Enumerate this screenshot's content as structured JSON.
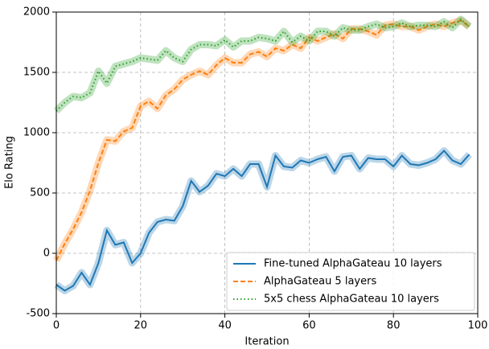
{
  "chart_data": {
    "type": "line",
    "xlabel": "Iteration",
    "ylabel": "Elo Rating",
    "x": [
      0,
      2,
      4,
      6,
      8,
      10,
      12,
      14,
      16,
      18,
      20,
      22,
      24,
      26,
      28,
      30,
      32,
      34,
      36,
      38,
      40,
      42,
      44,
      46,
      48,
      50,
      52,
      54,
      56,
      58,
      60,
      62,
      64,
      66,
      68,
      70,
      72,
      74,
      76,
      78,
      80,
      82,
      84,
      86,
      88,
      90,
      92,
      94,
      96,
      98
    ],
    "series": [
      {
        "name": "Fine-tuned AlphaGateau 10 layers",
        "color": "#1f77b4",
        "linestyle": "solid",
        "values": [
          -260,
          -310,
          -270,
          -160,
          -260,
          -80,
          190,
          70,
          90,
          -80,
          0,
          170,
          260,
          280,
          270,
          390,
          600,
          510,
          560,
          660,
          640,
          700,
          640,
          740,
          740,
          550,
          810,
          720,
          710,
          770,
          750,
          780,
          800,
          680,
          800,
          810,
          700,
          790,
          780,
          780,
          720,
          810,
          740,
          730,
          750,
          780,
          850,
          770,
          740,
          820
        ]
      },
      {
        "name": "AlphaGateau 5 layers",
        "color": "#ff7f0e",
        "linestyle": "dashed",
        "values": [
          -60,
          80,
          200,
          340,
          520,
          750,
          940,
          930,
          1010,
          1040,
          1220,
          1260,
          1200,
          1310,
          1360,
          1440,
          1480,
          1510,
          1480,
          1560,
          1620,
          1580,
          1580,
          1650,
          1670,
          1630,
          1700,
          1680,
          1730,
          1700,
          1790,
          1760,
          1790,
          1820,
          1780,
          1860,
          1860,
          1840,
          1810,
          1890,
          1900,
          1880,
          1880,
          1850,
          1880,
          1900,
          1880,
          1910,
          1930,
          1880
        ]
      },
      {
        "name": "5x5 chess AlphaGateau 10 layers",
        "color": "#2ca02c",
        "linestyle": "dotted",
        "values": [
          1180,
          1250,
          1300,
          1290,
          1330,
          1510,
          1410,
          1550,
          1570,
          1590,
          1620,
          1610,
          1600,
          1680,
          1620,
          1590,
          1690,
          1730,
          1730,
          1720,
          1770,
          1710,
          1760,
          1760,
          1790,
          1780,
          1760,
          1840,
          1750,
          1800,
          1760,
          1840,
          1840,
          1800,
          1870,
          1850,
          1850,
          1880,
          1900,
          1870,
          1880,
          1910,
          1880,
          1890,
          1890,
          1880,
          1920,
          1870,
          1940,
          1880
        ]
      }
    ],
    "xlim": [
      0,
      100
    ],
    "xticks": [
      0,
      20,
      40,
      60,
      80,
      100
    ],
    "ylim": [
      -500,
      2000
    ],
    "yticks": [
      -500,
      0,
      500,
      1000,
      1500,
      2000
    ],
    "grid": true,
    "legend": "lower right"
  }
}
